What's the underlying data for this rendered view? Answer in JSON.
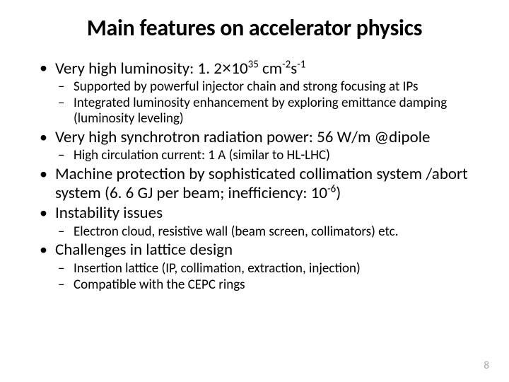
{
  "title": "Main features on accelerator physics",
  "b1": {
    "pre": "Very high luminosity: 1. 2",
    "mult": "×",
    "base": "10",
    "exp1": "35",
    "unit": " cm",
    "exp2": "-2",
    "s": "s",
    "exp3": "-1"
  },
  "b1s1": "Supported by powerful injector chain and strong focusing at IPs",
  "b1s2": "Integrated luminosity enhancement by exploring emittance damping (luminosity leveling)",
  "b2": "Very high synchrotron radiation power: 56 W/m @dipole",
  "b2s1": "High circulation current: 1 A (similar to HL-LHC)",
  "b3": {
    "pre": "Machine protection by sophisticated collimation system /abort system (6. 6 GJ per beam; inefficiency: 10",
    "exp": "-6",
    "post": ")"
  },
  "b4": "Instability issues",
  "b4s1": "Electron cloud, resistive wall (beam screen, collimators) etc.",
  "b5": "Challenges in lattice design",
  "b5s1": "Insertion lattice (IP, collimation, extraction, injection)",
  "b5s2": "Compatible with the CEPC rings",
  "pagenum": "8",
  "colors": {
    "text": "#000000",
    "pagenum": "#a6a6a6",
    "bg": "#ffffff"
  },
  "fonts": {
    "title_size": 32,
    "l1_size": 23,
    "l2_size": 19,
    "pagenum_size": 15
  }
}
